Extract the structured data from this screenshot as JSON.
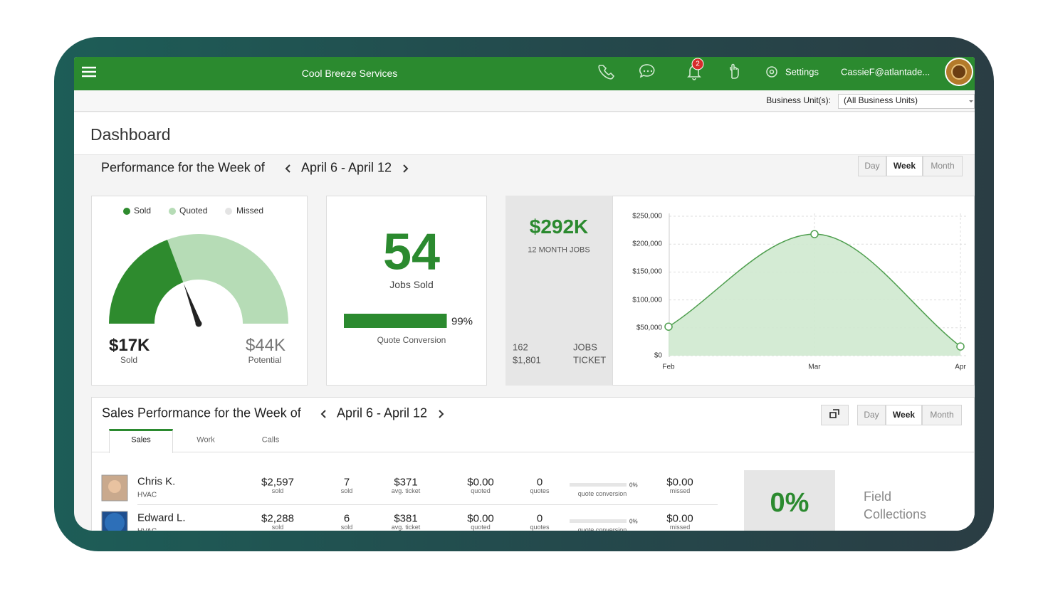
{
  "header": {
    "title": "Cool Breeze Services",
    "notifications": 2,
    "settings": "Settings",
    "user": "CassieF@atlantade..."
  },
  "business_unit": {
    "label": "Business Unit(s):",
    "selected": "(All Business Units)"
  },
  "page_title": "Dashboard",
  "performance": {
    "heading": "Performance for the Week of",
    "date_range": "April 6 - April 12",
    "periods": [
      "Day",
      "Week",
      "Month"
    ],
    "active_period": "Week",
    "gauge": {
      "legend": [
        {
          "name": "Sold",
          "color": "#2e8b2e"
        },
        {
          "name": "Quoted",
          "color": "#b6dcb6"
        },
        {
          "name": "Missed",
          "color": "#e4e4e4"
        }
      ],
      "sold": {
        "value": 17000,
        "label": "$17K",
        "caption": "Sold"
      },
      "potential": {
        "value": 44000,
        "label": "$44K",
        "caption": "Potential"
      }
    },
    "jobs": {
      "count": 54,
      "caption": "Jobs Sold",
      "quote_conversion": {
        "value": 99,
        "label": "99%",
        "caption": "Quote Conversion"
      }
    },
    "revenue": {
      "total": "$292K",
      "caption": "12 MONTH JOBS",
      "jobs_value": 162,
      "jobs_label": "JOBS",
      "ticket_value": "$1,801",
      "ticket_label": "TICKET"
    }
  },
  "chart_data": {
    "type": "area",
    "categories": [
      "Feb",
      "Mar",
      "Apr"
    ],
    "values": [
      52000,
      218000,
      16500
    ],
    "color": "#4f9f4f",
    "ylim": [
      0,
      250000
    ],
    "yticks": [
      {
        "value": 0,
        "label": "$0"
      },
      {
        "value": 50000,
        "label": "$50,000"
      },
      {
        "value": 100000,
        "label": "$100,000"
      },
      {
        "value": 150000,
        "label": "$150,000"
      },
      {
        "value": 200000,
        "label": "$200,000"
      },
      {
        "value": 250000,
        "label": "$250,000"
      }
    ],
    "grid": true
  },
  "sales": {
    "heading": "Sales Performance for the Week of",
    "date_range": "April 6 - April 12",
    "periods": [
      "Day",
      "Week",
      "Month"
    ],
    "active_period": "Week",
    "tabs": [
      "Sales",
      "Work",
      "Calls"
    ],
    "active_tab": "Sales",
    "rows": [
      {
        "name": "Chris K.",
        "unit": "HVAC",
        "sold": {
          "value": "$2,597",
          "caption": "sold"
        },
        "jobs": {
          "value": 7,
          "caption": "sold"
        },
        "avg_ticket": {
          "value": "$371",
          "caption": "avg. ticket"
        },
        "quoted": {
          "value": "$0.00",
          "caption": "quoted"
        },
        "quotes": {
          "value": 0,
          "caption": "quotes"
        },
        "conversion": {
          "value": 0,
          "label": "0%",
          "caption": "quote conversion"
        },
        "missed": {
          "value": "$0.00",
          "caption": "missed"
        }
      },
      {
        "name": "Edward L.",
        "unit": "HVAC",
        "sold": {
          "value": "$2,288",
          "caption": "sold"
        },
        "jobs": {
          "value": 6,
          "caption": "sold"
        },
        "avg_ticket": {
          "value": "$381",
          "caption": "avg. ticket"
        },
        "quoted": {
          "value": "$0.00",
          "caption": "quoted"
        },
        "quotes": {
          "value": 0,
          "caption": "quotes"
        },
        "conversion": {
          "value": 0,
          "label": "0%",
          "caption": "quote conversion"
        },
        "missed": {
          "value": "$0.00",
          "caption": "missed"
        }
      }
    ],
    "field_collections": {
      "value": "0%",
      "label": "Field Collections"
    }
  }
}
